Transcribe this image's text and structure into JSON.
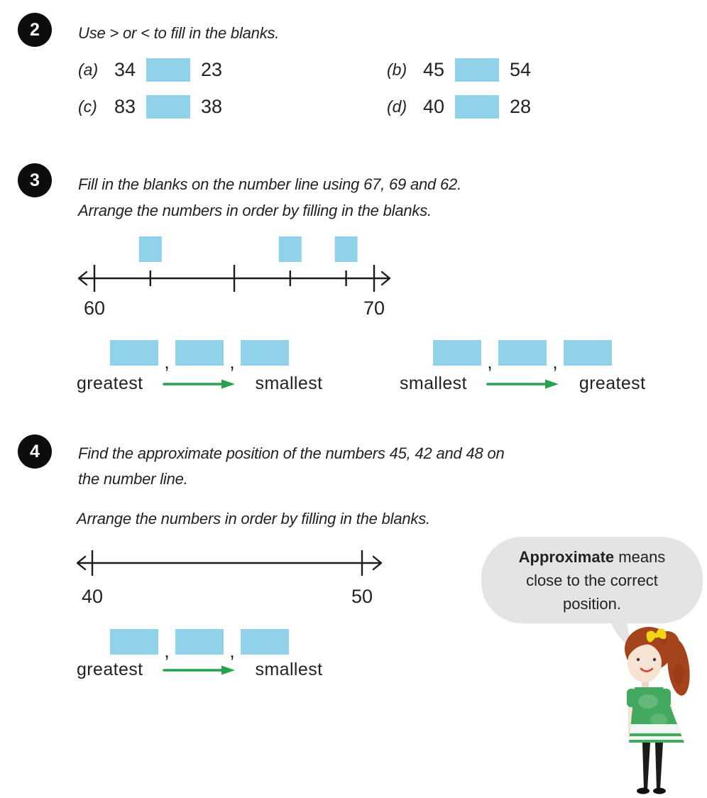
{
  "colors": {
    "blank_fill": "#8FD2E9",
    "arrow_green": "#27A24F",
    "bubble_gray": "#E4E4E4",
    "badge_black": "#0D0D0D",
    "text_dark": "#222222",
    "line_black": "#1C1C1C",
    "girl_hair": "#A5441C",
    "girl_skin": "#F7E3D3",
    "girl_dress": "#43A95F",
    "girl_bow": "#F2D513",
    "girl_legs": "#1B1B1B",
    "girl_mouth": "#CB4B33"
  },
  "punctuation": {
    "comma": ","
  },
  "q2": {
    "number": "2",
    "instruction": "Use > or < to fill in the blanks.",
    "items": [
      {
        "label": "(a)",
        "first": "34",
        "second": "23"
      },
      {
        "label": "(b)",
        "first": "45",
        "second": "54"
      },
      {
        "label": "(c)",
        "first": "83",
        "second": "38"
      },
      {
        "label": "(d)",
        "first": "40",
        "second": "28"
      }
    ]
  },
  "q3": {
    "number": "3",
    "instruction_line1": "Fill in the blanks on the number line using 67, 69 and 62.",
    "instruction_line2": "Arrange the numbers in order by filling in the blanks.",
    "number_line": {
      "min": 60,
      "max": 70,
      "start_label": "60",
      "end_label": "70",
      "ticks": [
        60,
        62,
        65,
        67,
        69,
        70
      ],
      "tall_ticks": [
        60,
        65,
        70
      ],
      "blank_positions": [
        62,
        67,
        69
      ]
    },
    "order_left": {
      "from": "greatest",
      "to": "smallest"
    },
    "order_right": {
      "from": "smallest",
      "to": "greatest"
    }
  },
  "q4": {
    "number": "4",
    "instruction_line1": "Find the approximate position of the numbers 45, 42 and 48 on",
    "instruction_line2": "the number line.",
    "instruction_arrange": "Arrange the numbers in order by filling in the blanks.",
    "number_line": {
      "min": 40,
      "max": 50,
      "start_label": "40",
      "end_label": "50",
      "ticks": [
        40,
        50
      ],
      "tall_ticks": [
        40,
        50
      ],
      "blank_positions": []
    },
    "order": {
      "from": "greatest",
      "to": "smallest"
    }
  },
  "bubble": {
    "line1_bold": "Approximate",
    "line1_rest": " means",
    "line2": "close to the correct",
    "line3": "position."
  }
}
